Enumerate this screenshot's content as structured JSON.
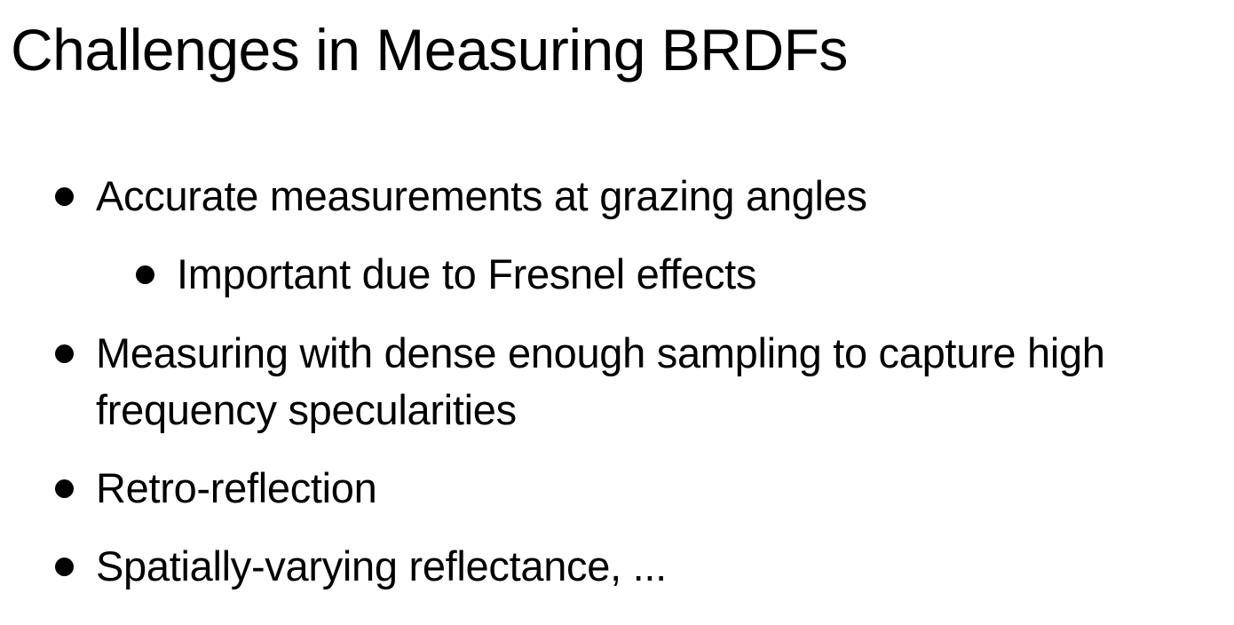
{
  "slide": {
    "title": "Challenges in Measuring BRDFs",
    "bullets": [
      {
        "text": "Accurate measurements at grazing angles"
      },
      {
        "text": "Important due to Fresnel effects"
      },
      {
        "text": "Measuring with dense enough sampling to capture high frequency specularities"
      },
      {
        "text": "Retro-reflection"
      },
      {
        "text": "Spatially-varying reflectance, ..."
      }
    ]
  }
}
